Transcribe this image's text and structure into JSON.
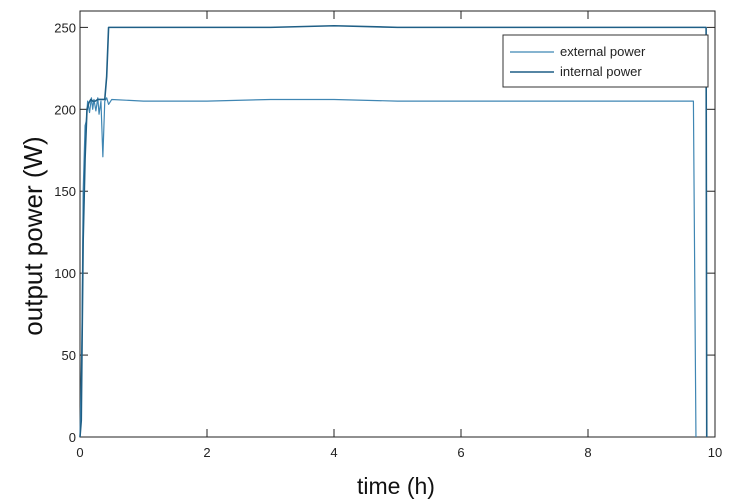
{
  "chart_data": {
    "type": "line",
    "xlabel": "time (h)",
    "ylabel": "output power (W)",
    "xlim": [
      0,
      10
    ],
    "ylim": [
      0,
      260
    ],
    "x_ticks": [
      0,
      2,
      4,
      6,
      8,
      10
    ],
    "y_ticks": [
      0,
      50,
      100,
      150,
      200,
      250
    ],
    "legend_position": "top-right",
    "grid": false,
    "series": [
      {
        "name": "external power",
        "color": "#3f86b3",
        "x": [
          0.0,
          0.03,
          0.05,
          0.08,
          0.1,
          0.12,
          0.15,
          0.18,
          0.2,
          0.22,
          0.25,
          0.28,
          0.3,
          0.33,
          0.36,
          0.39,
          0.42,
          0.45,
          0.5,
          1.0,
          2.0,
          3.0,
          4.0,
          5.0,
          6.0,
          7.0,
          8.0,
          9.0,
          9.6,
          9.66,
          9.7
        ],
        "y": [
          0,
          60,
          150,
          190,
          193,
          205,
          198,
          207,
          200,
          206,
          199,
          207,
          197,
          205,
          171,
          205,
          207,
          203,
          206,
          205,
          205,
          206,
          206,
          205,
          205,
          205,
          205,
          205,
          205,
          205,
          0
        ]
      },
      {
        "name": "internal power",
        "color": "#1f5f86",
        "x": [
          0.0,
          0.02,
          0.05,
          0.08,
          0.11,
          0.14,
          0.17,
          0.2,
          0.24,
          0.28,
          0.32,
          0.36,
          0.39,
          0.42,
          0.45,
          0.5,
          1.0,
          2.0,
          3.0,
          4.0,
          5.0,
          6.0,
          7.0,
          8.0,
          9.0,
          9.5,
          9.8,
          9.86,
          9.87
        ],
        "y": [
          0,
          10,
          120,
          170,
          200,
          204,
          206,
          205,
          205,
          206,
          206,
          206,
          206,
          220,
          250,
          250,
          250,
          250,
          250,
          251,
          250,
          250,
          250,
          250,
          250,
          250,
          250,
          250,
          0
        ]
      }
    ]
  }
}
